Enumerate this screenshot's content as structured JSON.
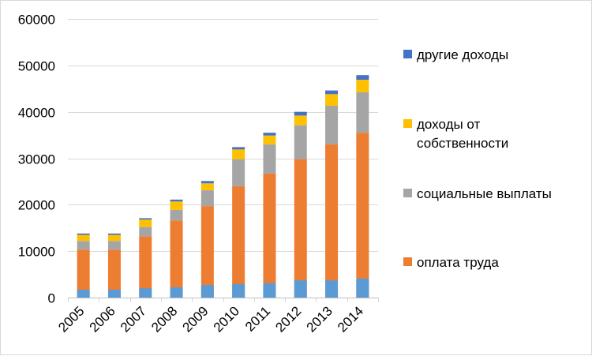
{
  "chart_data": {
    "type": "bar",
    "stacked": true,
    "categories": [
      "2005",
      "2006",
      "2007",
      "2008",
      "2009",
      "2010",
      "2011",
      "2012",
      "2013",
      "2014"
    ],
    "series": [
      {
        "name": "оплата труда",
        "color": "#ED7D31",
        "values": [
          10300,
          10300,
          13200,
          16600,
          19700,
          24000,
          26700,
          29800,
          33000,
          35500
        ]
      },
      {
        "name": "социальные выплаты",
        "color": "#A5A5A5",
        "values": [
          1900,
          1900,
          2000,
          2300,
          3400,
          5800,
          6300,
          7300,
          8300,
          8700
        ]
      },
      {
        "name": "доходы от собственности",
        "color": "#FFC000",
        "values": [
          1300,
          1300,
          1600,
          1800,
          1500,
          2100,
          1900,
          2100,
          2500,
          2700
        ]
      },
      {
        "name": "другие доходы",
        "color": "#4472C4",
        "values": [
          300,
          300,
          300,
          400,
          500,
          500,
          600,
          800,
          800,
          1000
        ]
      }
    ],
    "inner_segment": {
      "color": "#5B9BD5",
      "values": [
        1700,
        1700,
        2000,
        2200,
        2700,
        2900,
        3100,
        3700,
        3700,
        4100
      ]
    },
    "ylim": [
      0,
      60000
    ],
    "yticks": [
      0,
      10000,
      20000,
      30000,
      40000,
      50000,
      60000
    ],
    "ytick_labels": [
      "0",
      "10000",
      "20000",
      "30000",
      "40000",
      "50000",
      "60000"
    ],
    "grid": true,
    "legend_position": "right",
    "legend_order": [
      "другие доходы",
      "доходы от собственности",
      "социальные выплаты",
      "оплата труда"
    ]
  },
  "legend": {
    "item_0": {
      "label": "другие доходы",
      "color": "#4472C4"
    },
    "item_1": {
      "label": "доходы от собственности",
      "color": "#FFC000"
    },
    "item_2": {
      "label": "социальные выплаты",
      "color": "#A5A5A5"
    },
    "item_3": {
      "label": "оплата труда",
      "color": "#ED7D31"
    }
  }
}
